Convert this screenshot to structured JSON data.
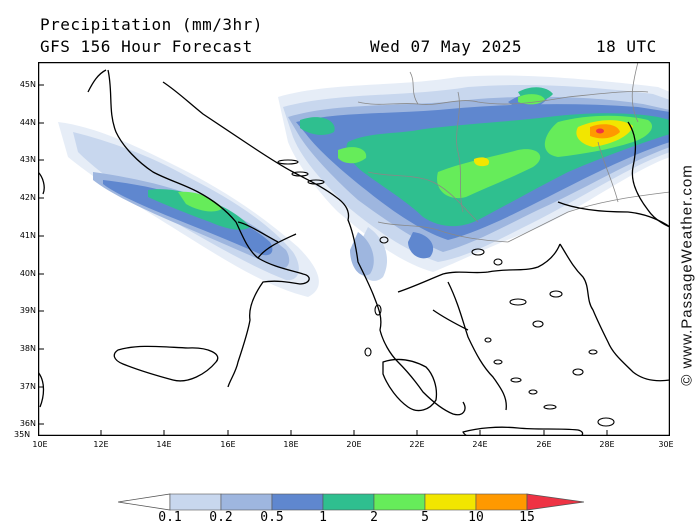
{
  "header": {
    "line1": "Precipitation (mm/3hr)",
    "line2_left": "GFS 156 Hour Forecast",
    "line2_mid": "Wed 07 May 2025",
    "line2_right": "18 UTC"
  },
  "map": {
    "lat_labels": [
      "45N",
      "44N",
      "43N",
      "42N",
      "41N",
      "40N",
      "39N",
      "38N",
      "37N",
      "36N",
      "35N"
    ],
    "lon_labels": [
      "10E",
      "12E",
      "14E",
      "16E",
      "18E",
      "20E",
      "22E",
      "24E",
      "26E",
      "28E",
      "30E"
    ],
    "lat_range": [
      35,
      45.6
    ],
    "lon_range": [
      10,
      30
    ]
  },
  "credit": "© www.PassageWeather.com",
  "legend": {
    "labels": [
      "0.1",
      "0.2",
      "0.5",
      "1",
      "2",
      "5",
      "10",
      "15"
    ],
    "colors": [
      "#e9eff8",
      "#c8d7ee",
      "#9eb6df",
      "#5f87cf",
      "#2fbf8f",
      "#66ec5a",
      "#f2e600",
      "#ff9900",
      "#ee3344"
    ]
  }
}
